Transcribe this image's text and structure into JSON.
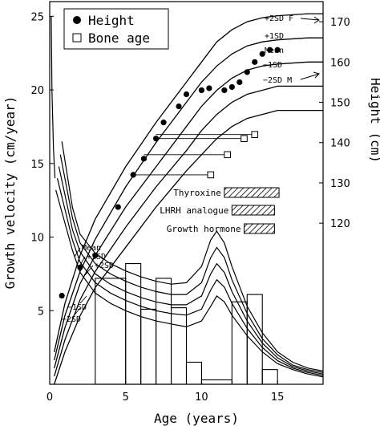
{
  "chart_data": {
    "type": "line",
    "title": "",
    "xlabel": "Age (years)",
    "ylabel_left": "Growth velocity (cm/year)",
    "ylabel_right": "Height (cm)",
    "xlim": [
      0,
      18
    ],
    "ylim_left": [
      0,
      26
    ],
    "ylim_right": [
      80,
      175
    ],
    "x_ticks": [
      0,
      5,
      10,
      15
    ],
    "y_ticks_left": [
      5,
      10,
      15,
      20,
      25
    ],
    "y_ticks_right": [
      120,
      130,
      140,
      150,
      160,
      170
    ],
    "legend": {
      "placement": "top-left",
      "entries": [
        {
          "label": "Height",
          "marker": "filled-circle"
        },
        {
          "label": "Bone age",
          "marker": "open-square"
        }
      ]
    },
    "height_reference_curves": {
      "labels": [
        "+2SD F",
        "+1SD",
        "Mean",
        "−1SD",
        "−2SD M"
      ],
      "curves": [
        {
          "name": "+2SD",
          "points": [
            [
              0.3,
              88
            ],
            [
              1,
              100
            ],
            [
              2,
              112
            ],
            [
              3,
              121
            ],
            [
              5,
              134
            ],
            [
              7,
              145
            ],
            [
              9,
              155
            ],
            [
              10,
              160
            ],
            [
              11,
              165
            ],
            [
              12,
              168
            ],
            [
              13,
              170
            ],
            [
              14,
              171
            ],
            [
              15,
              171.5
            ],
            [
              17,
              172
            ],
            [
              18,
              172
            ]
          ]
        },
        {
          "name": "+1SD",
          "points": [
            [
              0.3,
              86
            ],
            [
              1,
              97
            ],
            [
              2,
              108
            ],
            [
              3,
              116
            ],
            [
              5,
              129
            ],
            [
              7,
              140
            ],
            [
              9,
              150
            ],
            [
              10,
              155
            ],
            [
              11,
              159
            ],
            [
              12,
              162
            ],
            [
              13,
              164
            ],
            [
              14,
              165
            ],
            [
              15,
              165.5
            ],
            [
              17,
              166
            ],
            [
              18,
              166
            ]
          ]
        },
        {
          "name": "Mean",
          "points": [
            [
              0.3,
              84
            ],
            [
              1,
              94
            ],
            [
              2,
              105
            ],
            [
              3,
              112
            ],
            [
              5,
              124
            ],
            [
              7,
              134
            ],
            [
              9,
              144
            ],
            [
              10,
              149
            ],
            [
              11,
              153
            ],
            [
              12,
              156
            ],
            [
              13,
              158
            ],
            [
              14,
              159
            ],
            [
              15,
              159.5
            ],
            [
              17,
              160
            ],
            [
              18,
              160
            ]
          ]
        },
        {
          "name": "−1SD",
          "points": [
            [
              0.3,
              82
            ],
            [
              1,
              91
            ],
            [
              2,
              101
            ],
            [
              3,
              108
            ],
            [
              5,
              119
            ],
            [
              7,
              129
            ],
            [
              9,
              138
            ],
            [
              10,
              143
            ],
            [
              11,
              147
            ],
            [
              12,
              150
            ],
            [
              13,
              152
            ],
            [
              14,
              153
            ],
            [
              15,
              154
            ],
            [
              17,
              154
            ],
            [
              18,
              154
            ]
          ]
        },
        {
          "name": "−2SD",
          "points": [
            [
              0.3,
              80
            ],
            [
              1,
              88
            ],
            [
              2,
              97
            ],
            [
              3,
              104
            ],
            [
              5,
              114
            ],
            [
              7,
              124
            ],
            [
              9,
              133
            ],
            [
              10,
              137
            ],
            [
              11,
              141
            ],
            [
              12,
              144
            ],
            [
              13,
              146
            ],
            [
              14,
              147
            ],
            [
              15,
              148
            ],
            [
              17,
              148
            ],
            [
              18,
              148
            ]
          ]
        }
      ]
    },
    "height_points": [
      [
        0.8,
        102
      ],
      [
        2,
        109
      ],
      [
        3,
        112
      ],
      [
        4.5,
        124
      ],
      [
        5.5,
        132
      ],
      [
        6.2,
        136
      ],
      [
        7,
        141
      ],
      [
        7.5,
        145
      ],
      [
        8.5,
        149
      ],
      [
        9,
        152
      ],
      [
        10,
        153
      ],
      [
        10.5,
        153.5
      ],
      [
        11.5,
        153
      ],
      [
        12,
        153.8
      ],
      [
        12.5,
        155
      ],
      [
        13,
        157.5
      ],
      [
        13.5,
        160
      ],
      [
        14,
        162
      ],
      [
        14.5,
        163
      ],
      [
        15,
        163
      ]
    ],
    "bone_age_points": [
      [
        10.6,
        132
      ],
      [
        11.7,
        137
      ],
      [
        12.8,
        141
      ],
      [
        13.5,
        142
      ]
    ],
    "velocity_reference_curves": {
      "labels": [
        "Mean",
        "+1SD",
        "+2SD",
        "−1SD",
        "−2SD"
      ],
      "curves": [
        {
          "name": "+2SD",
          "points": [
            [
              0.8,
              16.5
            ],
            [
              1.5,
              12
            ],
            [
              2,
              10.2
            ],
            [
              3,
              8.9
            ],
            [
              4,
              8.2
            ],
            [
              5,
              7.7
            ],
            [
              6,
              7.3
            ],
            [
              7,
              7
            ],
            [
              8,
              6.8
            ],
            [
              9,
              6.9
            ],
            [
              10,
              8
            ],
            [
              10.6,
              9.8
            ],
            [
              11,
              10.4
            ],
            [
              11.5,
              9.6
            ],
            [
              12,
              8
            ],
            [
              13,
              5.3
            ],
            [
              14,
              3.5
            ],
            [
              15,
              2.2
            ],
            [
              16,
              1.5
            ],
            [
              17,
              1.1
            ],
            [
              18,
              0.9
            ]
          ]
        },
        {
          "name": "+1SD",
          "points": [
            [
              0.7,
              15.6
            ],
            [
              1.5,
              11.3
            ],
            [
              2,
              9.6
            ],
            [
              3,
              8.2
            ],
            [
              4,
              7.5
            ],
            [
              5,
              7
            ],
            [
              6,
              6.6
            ],
            [
              7,
              6.3
            ],
            [
              8,
              6.1
            ],
            [
              9,
              6.1
            ],
            [
              10,
              6.9
            ],
            [
              10.6,
              8.6
            ],
            [
              11,
              9.3
            ],
            [
              11.5,
              8.6
            ],
            [
              12,
              7.1
            ],
            [
              13,
              4.8
            ],
            [
              14,
              3.1
            ],
            [
              15,
              2
            ],
            [
              16,
              1.3
            ],
            [
              17,
              1
            ],
            [
              18,
              0.8
            ]
          ]
        },
        {
          "name": "Mean",
          "points": [
            [
              0.6,
              14.8
            ],
            [
              1.5,
              10.5
            ],
            [
              2,
              9
            ],
            [
              3,
              7.5
            ],
            [
              4,
              6.8
            ],
            [
              5,
              6.3
            ],
            [
              6,
              5.9
            ],
            [
              7,
              5.6
            ],
            [
              8,
              5.4
            ],
            [
              9,
              5.4
            ],
            [
              10,
              6
            ],
            [
              10.6,
              7.5
            ],
            [
              11,
              8.2
            ],
            [
              11.5,
              7.6
            ],
            [
              12,
              6.3
            ],
            [
              13,
              4.3
            ],
            [
              14,
              2.8
            ],
            [
              15,
              1.8
            ],
            [
              16,
              1.2
            ],
            [
              17,
              0.9
            ],
            [
              18,
              0.7
            ]
          ]
        },
        {
          "name": "−1SD",
          "points": [
            [
              0.5,
              14
            ],
            [
              1.5,
              9.8
            ],
            [
              2,
              8.3
            ],
            [
              3,
              6.9
            ],
            [
              4,
              6.2
            ],
            [
              5,
              5.7
            ],
            [
              6,
              5.3
            ],
            [
              7,
              5
            ],
            [
              8,
              4.8
            ],
            [
              9,
              4.7
            ],
            [
              10,
              5.1
            ],
            [
              10.6,
              6.4
            ],
            [
              11,
              7.1
            ],
            [
              11.5,
              6.6
            ],
            [
              12,
              5.5
            ],
            [
              13,
              3.8
            ],
            [
              14,
              2.5
            ],
            [
              15,
              1.6
            ],
            [
              16,
              1.1
            ],
            [
              17,
              0.8
            ],
            [
              18,
              0.6
            ]
          ]
        },
        {
          "name": "−2SD",
          "points": [
            [
              0.4,
              13.2
            ],
            [
              1.5,
              9.1
            ],
            [
              2,
              7.6
            ],
            [
              3,
              6.2
            ],
            [
              4,
              5.5
            ],
            [
              5,
              5
            ],
            [
              6,
              4.6
            ],
            [
              7,
              4.3
            ],
            [
              8,
              4.1
            ],
            [
              9,
              3.9
            ],
            [
              10,
              4.3
            ],
            [
              10.6,
              5.3
            ],
            [
              11,
              6
            ],
            [
              11.5,
              5.6
            ],
            [
              12,
              4.7
            ],
            [
              13,
              3.3
            ],
            [
              14,
              2.2
            ],
            [
              15,
              1.4
            ],
            [
              16,
              1
            ],
            [
              17,
              0.7
            ],
            [
              18,
              0.5
            ]
          ]
        }
      ]
    },
    "velocity_curve_start": {
      "points": [
        [
          0.1,
          25
        ],
        [
          0.15,
          20
        ],
        [
          0.25,
          16
        ],
        [
          0.35,
          14
        ]
      ]
    },
    "velocity_bars": [
      {
        "x0": 3,
        "x1": 5,
        "value": 7.2
      },
      {
        "x0": 5,
        "x1": 6,
        "value": 8.2
      },
      {
        "x0": 6,
        "x1": 7,
        "value": 5.1
      },
      {
        "x0": 7,
        "x1": 8,
        "value": 7.2
      },
      {
        "x0": 8,
        "x1": 9,
        "value": 5.2
      },
      {
        "x0": 9,
        "x1": 10,
        "value": 1.5
      },
      {
        "x0": 10,
        "x1": 12,
        "value": 0.3
      },
      {
        "x0": 12,
        "x1": 13,
        "value": 5.6
      },
      {
        "x0": 13,
        "x1": 14,
        "value": 6.1
      },
      {
        "x0": 14,
        "x1": 15,
        "value": 1.0
      }
    ],
    "treatments": [
      {
        "label": "Thyroxine",
        "start": 11.5,
        "end": 15.1
      },
      {
        "label": "LHRH analogue",
        "start": 12,
        "end": 14.8
      },
      {
        "label": "Growth hormone",
        "start": 12.8,
        "end": 14.8
      }
    ]
  }
}
